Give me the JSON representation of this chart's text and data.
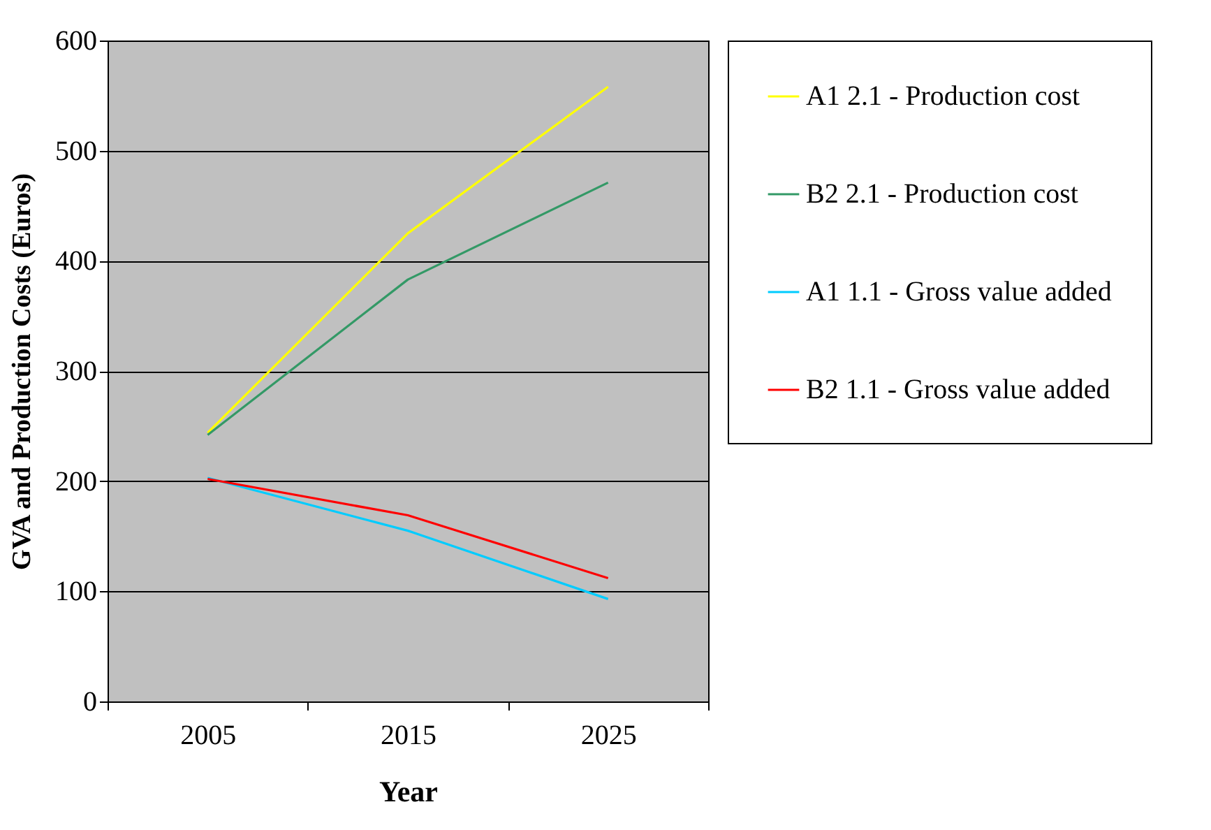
{
  "chart_data": {
    "type": "line",
    "xlabel": "Year",
    "ylabel": "GVA and Production Costs (Euros)",
    "categories": [
      "2005",
      "2015",
      "2025"
    ],
    "series": [
      {
        "name": "A1 2.1 - Production cost",
        "color": "#ffff00",
        "values": [
          244,
          425,
          558
        ]
      },
      {
        "name": "B2 2.1 - Production cost",
        "color": "#339966",
        "values": [
          242,
          383,
          471
        ]
      },
      {
        "name": "A1 1.1 - Gross value added",
        "color": "#00ccff",
        "values": [
          203,
          155,
          93
        ]
      },
      {
        "name": "B2 1.1 - Gross value added",
        "color": "#ff0000",
        "values": [
          202,
          169,
          112
        ]
      }
    ],
    "ylim": [
      0,
      600
    ],
    "yticks": [
      0,
      100,
      200,
      300,
      400,
      500,
      600
    ],
    "grid": "y",
    "legend": "right"
  }
}
